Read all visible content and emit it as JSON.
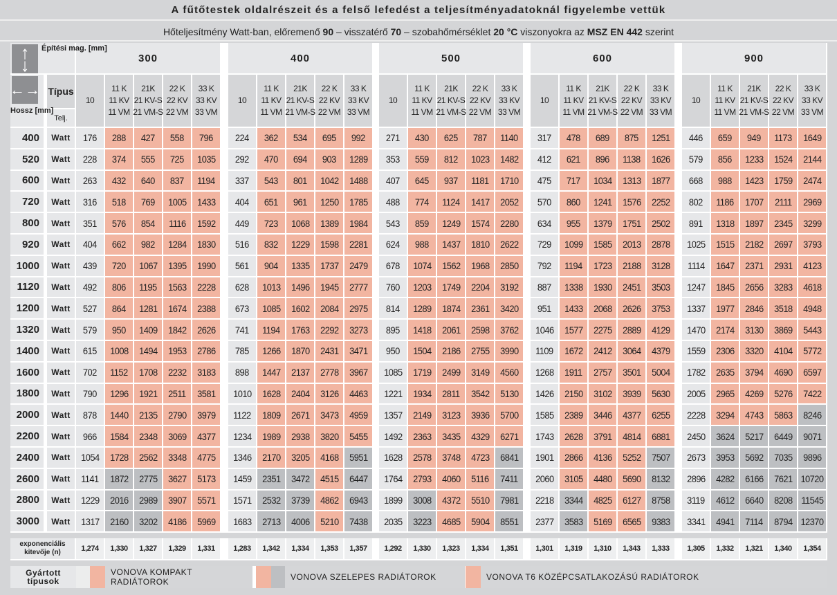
{
  "title": "A fűtőtestek oldalrészeit és a felső lefedést a teljesítményadatoknál figyelembe vettük",
  "subtitle": {
    "p1": "Hőteljesítmény Watt-ban, előremenő ",
    "b1": "90",
    "p2": " – visszatérő ",
    "b2": "70",
    "p3": " – szobahőmérséklet ",
    "b3": "20 °C",
    "p4": " viszonyokra az ",
    "b4": "MSZ EN 442",
    "p5": " szerint"
  },
  "header": {
    "height_label": "Építési mag. [mm]",
    "type_label": "Típus",
    "perf_label": "Telj.",
    "length_label": "Hossz [mm]",
    "unit": "Watt",
    "type_columns": [
      "10",
      "11 K\n11 KV\n11 VM",
      "21K\n21 KV-S\n21 VM-S",
      "22 K\n22 KV\n22 VM",
      "33 K\n33 KV\n33 VM"
    ],
    "icons": {
      "height": "up-down-arrows-icon",
      "length": "left-right-arrows-icon"
    }
  },
  "lengths": [
    "400",
    "520",
    "600",
    "720",
    "800",
    "920",
    "1000",
    "1120",
    "1200",
    "1320",
    "1400",
    "1600",
    "1800",
    "2000",
    "2200",
    "2400",
    "2600",
    "2800",
    "3000"
  ],
  "groups": [
    {
      "height": "300",
      "values": [
        [
          176,
          288,
          427,
          558,
          796
        ],
        [
          228,
          374,
          555,
          725,
          1035
        ],
        [
          263,
          432,
          640,
          837,
          1194
        ],
        [
          316,
          518,
          769,
          1005,
          1433
        ],
        [
          351,
          576,
          854,
          1116,
          1592
        ],
        [
          404,
          662,
          982,
          1284,
          1830
        ],
        [
          439,
          720,
          1067,
          1395,
          1990
        ],
        [
          492,
          806,
          1195,
          1563,
          2228
        ],
        [
          527,
          864,
          1281,
          1674,
          2388
        ],
        [
          579,
          950,
          1409,
          1842,
          2626
        ],
        [
          615,
          1008,
          1494,
          1953,
          2786
        ],
        [
          702,
          1152,
          1708,
          2232,
          3183
        ],
        [
          790,
          1296,
          1921,
          2511,
          3581
        ],
        [
          878,
          1440,
          2135,
          2790,
          3979
        ],
        [
          966,
          1584,
          2348,
          3069,
          4377
        ],
        [
          1054,
          1728,
          2562,
          3348,
          4775
        ],
        [
          1141,
          1872,
          2775,
          3627,
          5173
        ],
        [
          1229,
          2016,
          2989,
          3907,
          5571
        ],
        [
          1317,
          2160,
          3202,
          4186,
          5969
        ]
      ],
      "cell_types": [
        "SSSS",
        "SSSS",
        "SSSS",
        "SSSS",
        "SSSS",
        "SSSS",
        "SSSS",
        "SSSS",
        "SSSS",
        "SSSS",
        "SSSS",
        "SSSS",
        "SSSS",
        "SSSS",
        "SSSS",
        "SSSS",
        "GGSS",
        "GGSS",
        "GGSS"
      ],
      "exponents": [
        "1,274",
        "1,330",
        "1,327",
        "1,329",
        "1,331"
      ]
    },
    {
      "height": "400",
      "values": [
        [
          224,
          362,
          534,
          695,
          992
        ],
        [
          292,
          470,
          694,
          903,
          1289
        ],
        [
          337,
          543,
          801,
          1042,
          1488
        ],
        [
          404,
          651,
          961,
          1250,
          1785
        ],
        [
          449,
          723,
          1068,
          1389,
          1984
        ],
        [
          516,
          832,
          1229,
          1598,
          2281
        ],
        [
          561,
          904,
          1335,
          1737,
          2479
        ],
        [
          628,
          1013,
          1496,
          1945,
          2777
        ],
        [
          673,
          1085,
          1602,
          2084,
          2975
        ],
        [
          741,
          1194,
          1763,
          2292,
          3273
        ],
        [
          785,
          1266,
          1870,
          2431,
          3471
        ],
        [
          898,
          1447,
          2137,
          2778,
          3967
        ],
        [
          1010,
          1628,
          2404,
          3126,
          4463
        ],
        [
          1122,
          1809,
          2671,
          3473,
          4959
        ],
        [
          1234,
          1989,
          2938,
          3820,
          5455
        ],
        [
          1346,
          2170,
          3205,
          4168,
          5951
        ],
        [
          1459,
          2351,
          3472,
          4515,
          6447
        ],
        [
          1571,
          2532,
          3739,
          4862,
          6943
        ],
        [
          1683,
          2713,
          4006,
          5210,
          7438
        ]
      ],
      "cell_types": [
        "SSSS",
        "SSSS",
        "SSSS",
        "SSSS",
        "SSSS",
        "SSSS",
        "SSSS",
        "SSSS",
        "SSSS",
        "SSSS",
        "SSSS",
        "SSSS",
        "SSSS",
        "SSSS",
        "SSSS",
        "SSSG",
        "GGSG",
        "GGSG",
        "GGSG"
      ],
      "exponents": [
        "1,283",
        "1,342",
        "1,334",
        "1,353",
        "1,357"
      ]
    },
    {
      "height": "500",
      "values": [
        [
          271,
          430,
          625,
          787,
          1140
        ],
        [
          353,
          559,
          812,
          1023,
          1482
        ],
        [
          407,
          645,
          937,
          1181,
          1710
        ],
        [
          488,
          774,
          1124,
          1417,
          2052
        ],
        [
          543,
          859,
          1249,
          1574,
          2280
        ],
        [
          624,
          988,
          1437,
          1810,
          2622
        ],
        [
          678,
          1074,
          1562,
          1968,
          2850
        ],
        [
          760,
          1203,
          1749,
          2204,
          3192
        ],
        [
          814,
          1289,
          1874,
          2361,
          3420
        ],
        [
          895,
          1418,
          2061,
          2598,
          3762
        ],
        [
          950,
          1504,
          2186,
          2755,
          3990
        ],
        [
          1085,
          1719,
          2499,
          3149,
          4560
        ],
        [
          1221,
          1934,
          2811,
          3542,
          5130
        ],
        [
          1357,
          2149,
          3123,
          3936,
          5700
        ],
        [
          1492,
          2363,
          3435,
          4329,
          6271
        ],
        [
          1628,
          2578,
          3748,
          4723,
          6841
        ],
        [
          1764,
          2793,
          4060,
          5116,
          7411
        ],
        [
          1899,
          3008,
          4372,
          5510,
          7981
        ],
        [
          2035,
          3223,
          4685,
          5904,
          8551
        ]
      ],
      "cell_types": [
        "SSSS",
        "SSSS",
        "SSSS",
        "SSSS",
        "SSSS",
        "SSSS",
        "SSSS",
        "SSSS",
        "SSSS",
        "SSSS",
        "SSSS",
        "SSSS",
        "SSSS",
        "SSSS",
        "SSSS",
        "SSSG",
        "SSSG",
        "GSSG",
        "GSSG"
      ],
      "exponents": [
        "1,292",
        "1,330",
        "1,323",
        "1,334",
        "1,351"
      ]
    },
    {
      "height": "600",
      "values": [
        [
          317,
          478,
          689,
          875,
          1251
        ],
        [
          412,
          621,
          896,
          1138,
          1626
        ],
        [
          475,
          717,
          1034,
          1313,
          1877
        ],
        [
          570,
          860,
          1241,
          1576,
          2252
        ],
        [
          634,
          955,
          1379,
          1751,
          2502
        ],
        [
          729,
          1099,
          1585,
          2013,
          2878
        ],
        [
          792,
          1194,
          1723,
          2188,
          3128
        ],
        [
          887,
          1338,
          1930,
          2451,
          3503
        ],
        [
          951,
          1433,
          2068,
          2626,
          3753
        ],
        [
          1046,
          1577,
          2275,
          2889,
          4129
        ],
        [
          1109,
          1672,
          2412,
          3064,
          4379
        ],
        [
          1268,
          1911,
          2757,
          3501,
          5004
        ],
        [
          1426,
          2150,
          3102,
          3939,
          5630
        ],
        [
          1585,
          2389,
          3446,
          4377,
          6255
        ],
        [
          1743,
          2628,
          3791,
          4814,
          6881
        ],
        [
          1901,
          2866,
          4136,
          5252,
          7507
        ],
        [
          2060,
          3105,
          4480,
          5690,
          8132
        ],
        [
          2218,
          3344,
          4825,
          6127,
          8758
        ],
        [
          2377,
          3583,
          5169,
          6565,
          9383
        ]
      ],
      "cell_types": [
        "SSSS",
        "SSSS",
        "SSSS",
        "SSSS",
        "SSSS",
        "SSSS",
        "SSSS",
        "SSSS",
        "SSSS",
        "SSSS",
        "SSSS",
        "SSSS",
        "SSSS",
        "SSSS",
        "SSSS",
        "SSSG",
        "SSSG",
        "GSSG",
        "GSSG"
      ],
      "exponents": [
        "1,301",
        "1,319",
        "1,310",
        "1,343",
        "1,333"
      ]
    },
    {
      "height": "900",
      "values": [
        [
          446,
          659,
          949,
          1173,
          1649
        ],
        [
          579,
          856,
          1233,
          1524,
          2144
        ],
        [
          668,
          988,
          1423,
          1759,
          2474
        ],
        [
          802,
          1186,
          1707,
          2111,
          2969
        ],
        [
          891,
          1318,
          1897,
          2345,
          3299
        ],
        [
          1025,
          1515,
          2182,
          2697,
          3793
        ],
        [
          1114,
          1647,
          2371,
          2931,
          4123
        ],
        [
          1247,
          1845,
          2656,
          3283,
          4618
        ],
        [
          1337,
          1977,
          2846,
          3518,
          4948
        ],
        [
          1470,
          2174,
          3130,
          3869,
          5443
        ],
        [
          1559,
          2306,
          3320,
          4104,
          5772
        ],
        [
          1782,
          2635,
          3794,
          4690,
          6597
        ],
        [
          2005,
          2965,
          4269,
          5276,
          7422
        ],
        [
          2228,
          3294,
          4743,
          5863,
          8246
        ],
        [
          2450,
          3624,
          5217,
          6449,
          9071
        ],
        [
          2673,
          3953,
          5692,
          7035,
          9896
        ],
        [
          2896,
          4282,
          6166,
          7621,
          10720
        ],
        [
          3119,
          4612,
          6640,
          8208,
          11545
        ],
        [
          3341,
          4941,
          7114,
          8794,
          12370
        ]
      ],
      "cell_types": [
        "SSSS",
        "SSSS",
        "SSSS",
        "SSSS",
        "SSSS",
        "SSSS",
        "SSSS",
        "SSSS",
        "SSSS",
        "SSSS",
        "SSSS",
        "SSSS",
        "SSSS",
        "SSSG",
        "GGGG",
        "GGGG",
        "GGGG",
        "GGGG",
        "GGGG"
      ],
      "exponents": [
        "1,305",
        "1,332",
        "1,321",
        "1,340",
        "1,354"
      ]
    }
  ],
  "exponent_label": "exponenciális kitevője (n)",
  "legend": {
    "label": "Gyártott típusok",
    "items": [
      "VONOVA KOMPAKT RADIÁTOROK",
      "VONOVA SZELEPES RADIÁTOROK",
      "VONOVA T6 KÖZÉPCSATLAKOZÁSÚ RADIÁTOROK"
    ]
  },
  "colors": {
    "compact": "#f2b5a1",
    "valve": "#bdbfc2",
    "plain": "#e6e7e9"
  }
}
